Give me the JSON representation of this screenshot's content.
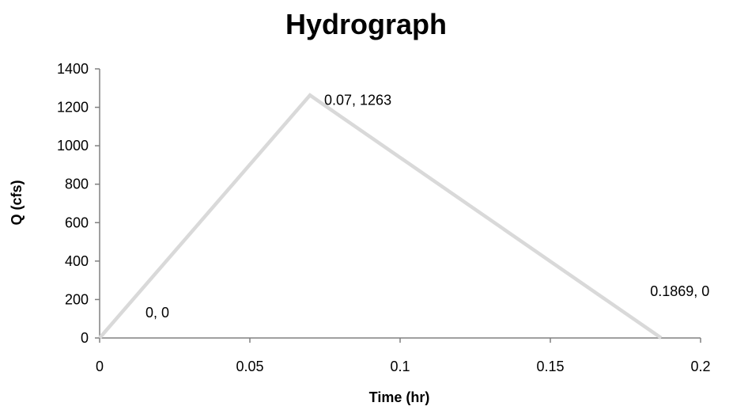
{
  "chart_data": {
    "type": "line",
    "title": "Hydrograph",
    "xlabel": "Time (hr)",
    "ylabel": "Q (cfs)",
    "xlim": [
      0,
      0.2
    ],
    "ylim": [
      0,
      1400
    ],
    "x_ticks": [
      0,
      0.05,
      0.1,
      0.15,
      0.2
    ],
    "x_tick_labels": [
      "0",
      "0.05",
      "0.1",
      "0.15",
      "0.2"
    ],
    "y_ticks": [
      0,
      200,
      400,
      600,
      800,
      1000,
      1200,
      1400
    ],
    "y_tick_labels": [
      "0",
      "200",
      "400",
      "600",
      "800",
      "1000",
      "1200",
      "1400"
    ],
    "grid": false,
    "legend": "none",
    "series": [
      {
        "x": [
          0,
          0.07,
          0.1869
        ],
        "y": [
          0,
          1263,
          0
        ],
        "color": "#d9d9d9",
        "data_labels": [
          "0, 0",
          "0.07, 1263",
          "0.1869, 0"
        ]
      }
    ]
  }
}
